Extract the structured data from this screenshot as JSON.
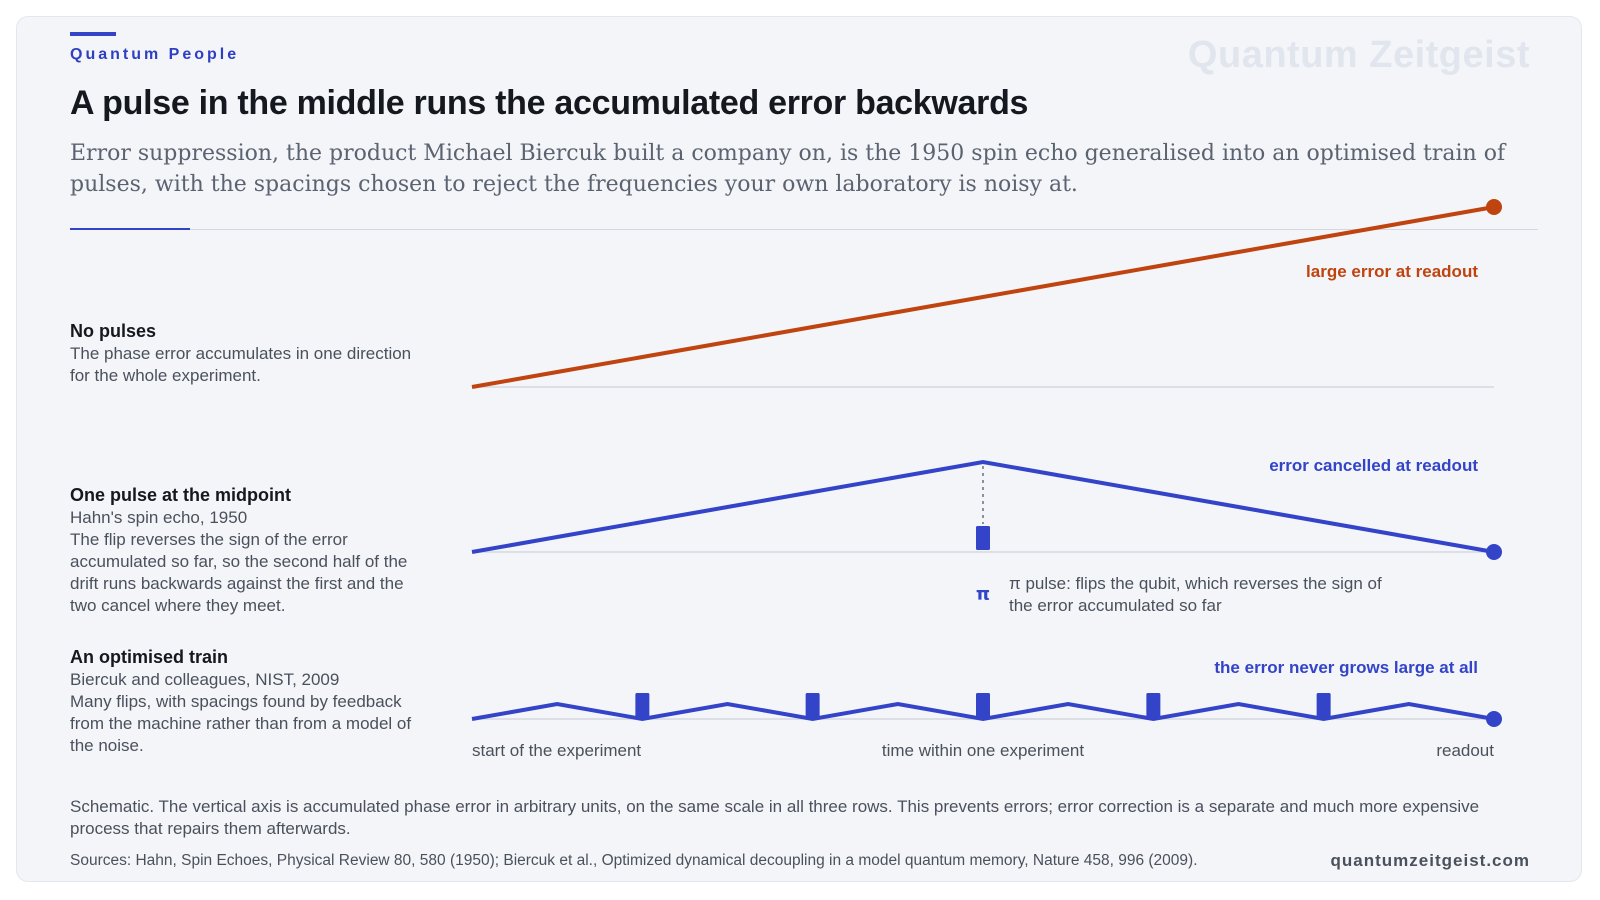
{
  "header": {
    "kicker": "Quantum People",
    "brand": "Quantum Zeitgeist",
    "title": "A pulse in the middle runs the accumulated error backwards",
    "subtitle": "Error suppression, the product Michael Biercuk built a company on, is the 1950 spin echo generalised into an optimised train of pulses, with the spacings chosen to reject the frequencies your own laboratory is noisy at."
  },
  "rows": [
    {
      "heading": "No pulses",
      "lines": [
        "The phase error accumulates in one direction for the whole experiment."
      ],
      "end_label": "large error at readout"
    },
    {
      "heading": "One pulse at the midpoint",
      "lines": [
        "Hahn's spin echo, 1950",
        "The flip reverses the sign of the error accumulated so far, so the second half of the drift runs backwards against the first and the two cancel where they meet."
      ],
      "end_label": "error cancelled at readout",
      "pulse_symbol": "π",
      "pulse_note": "π pulse: flips the qubit, which reverses the sign of the error accumulated so far"
    },
    {
      "heading": "An optimised train",
      "lines": [
        "Biercuk and colleagues, NIST, 2009",
        "Many flips, with spacings found by feedback from the machine rather than from a model of the noise."
      ],
      "end_label": "the error never grows large at all"
    }
  ],
  "axis": {
    "start": "start of the experiment",
    "middle": "time within one experiment",
    "end": "readout"
  },
  "caption": "Schematic. The vertical axis is accumulated phase error in arbitrary units, on the same scale in all three rows. This prevents errors; error correction is a separate and much more expensive process that repairs them afterwards.",
  "sources": "Sources: Hahn, Spin Echoes, Physical Review 80, 580 (1950); Biercuk et al., Optimized dynamical decoupling in a model quantum memory, Nature 458, 996 (2009).",
  "site": "quantumzeitgeist.com",
  "colors": {
    "accent": "#3344c9",
    "no_pulse": "#c0440f",
    "baseline": "#d4d8e0"
  },
  "chart_data": {
    "type": "line",
    "x": [
      0,
      0.0833,
      0.1667,
      0.25,
      0.3333,
      0.4167,
      0.5,
      0.5833,
      0.6667,
      0.75,
      0.8333,
      0.9167,
      1
    ],
    "series": [
      {
        "values": [
          0,
          0.0833,
          0.1667,
          0.25,
          0.3333,
          0.4167,
          0.5,
          0.5833,
          0.6667,
          0.75,
          0.8333,
          0.9167,
          1
        ],
        "pulses": []
      },
      {
        "values": [
          0,
          0.0833,
          0.1667,
          0.25,
          0.3333,
          0.4167,
          0.5,
          0.4167,
          0.3333,
          0.25,
          0.1667,
          0.0833,
          0
        ],
        "pulses": [
          0.5
        ]
      },
      {
        "values": [
          0,
          0.0833,
          0,
          0.0833,
          0,
          0.0833,
          0,
          0.0833,
          0,
          0.0833,
          0,
          0.0833,
          0
        ],
        "pulses": [
          0.1667,
          0.3333,
          0.5,
          0.6667,
          0.8333
        ]
      }
    ],
    "ylim": [
      0,
      1
    ]
  }
}
